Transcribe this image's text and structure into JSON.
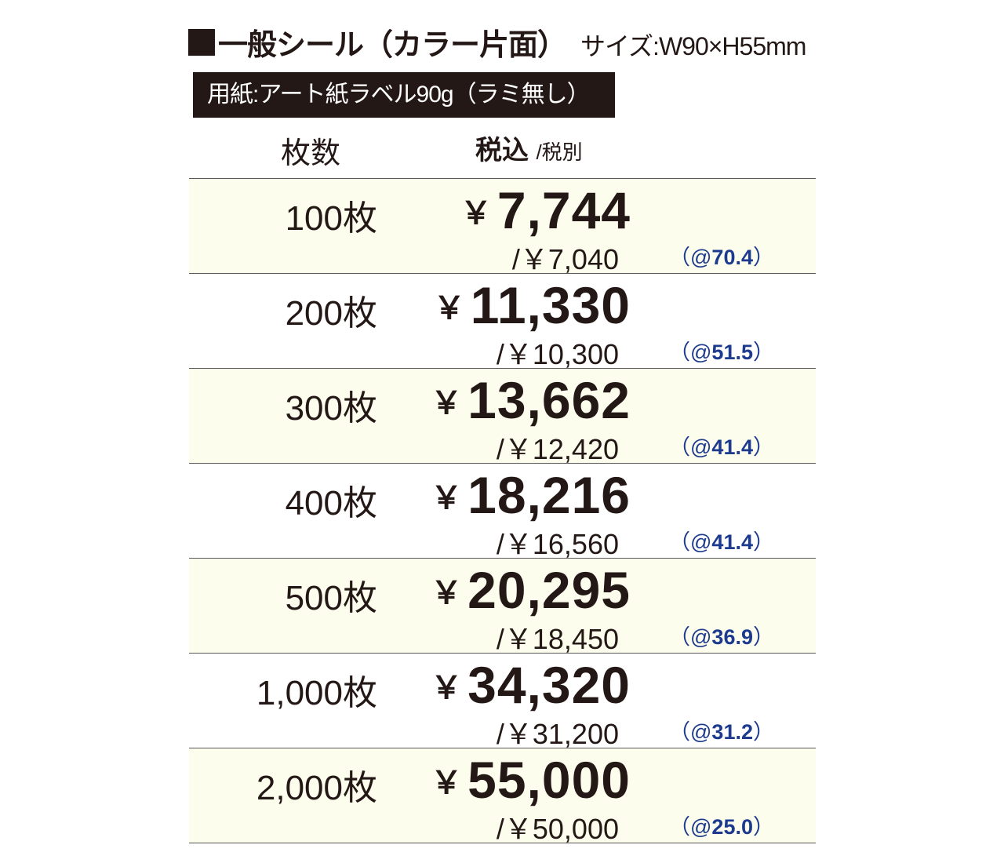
{
  "title": {
    "main": "一般シール（カラー片面）",
    "size": "サイズ:W90×H55mm"
  },
  "paper_label": "用紙:アート紙ラベル90g（ラミ無し）",
  "headers": {
    "quantity": "枚数",
    "tax_included": "税込",
    "tax_excluded": "/税別"
  },
  "colors": {
    "dark": "#231815",
    "row_alt": "#fdfdee",
    "unit_price": "#1d3b8e"
  },
  "rows": [
    {
      "qty": "100枚",
      "price": "7,744",
      "sub": "/￥7,040",
      "unit": "70.4"
    },
    {
      "qty": "200枚",
      "price": "11,330",
      "sub": "/￥10,300",
      "unit": "51.5"
    },
    {
      "qty": "300枚",
      "price": "13,662",
      "sub": "/￥12,420",
      "unit": "41.4"
    },
    {
      "qty": "400枚",
      "price": "18,216",
      "sub": "/￥16,560",
      "unit": "41.4"
    },
    {
      "qty": "500枚",
      "price": "20,295",
      "sub": "/￥18,450",
      "unit": "36.9"
    },
    {
      "qty": "1,000枚",
      "price": "34,320",
      "sub": "/￥31,200",
      "unit": "31.2"
    },
    {
      "qty": "2,000枚",
      "price": "55,000",
      "sub": "/￥50,000",
      "unit": "25.0"
    }
  ],
  "symbols": {
    "yen": "￥",
    "unit_open": "（@",
    "unit_close": "）"
  }
}
